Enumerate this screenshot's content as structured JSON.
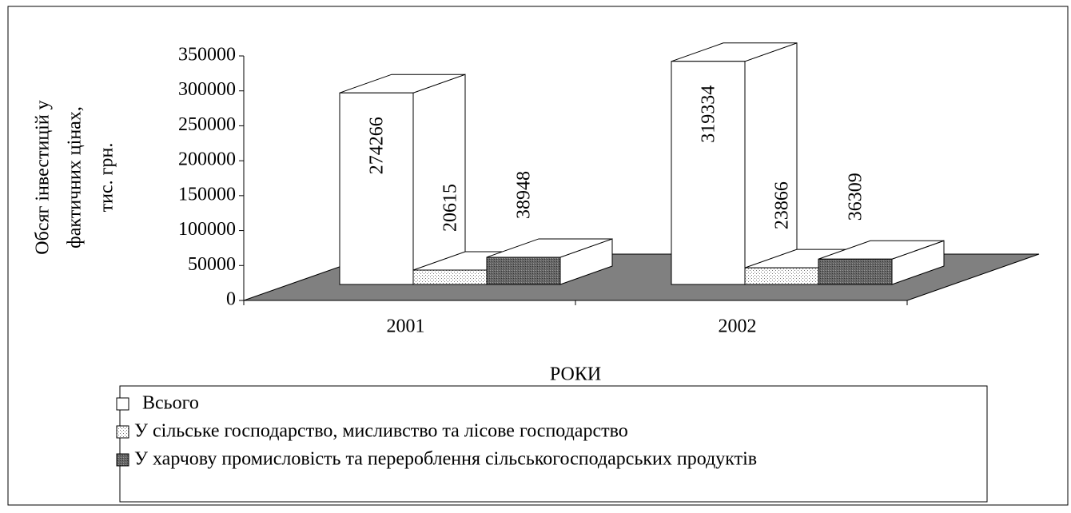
{
  "chart_data": {
    "type": "bar3d",
    "y_label": [
      "Обсяг інвестицій у",
      "фактичних цінах,",
      "тис. грн."
    ],
    "x_label": "РОКИ",
    "categories": [
      "2001",
      "2002"
    ],
    "series": [
      {
        "name": "Всього",
        "color": "#ffffff",
        "values": [
          274266,
          319334
        ]
      },
      {
        "name": "У сільське господарство, мисливство та лісове господарство",
        "color": "#e8e8e8",
        "values": [
          20615,
          23866
        ]
      },
      {
        "name": "У харчову промисловість та перероблення сільськогосподарських продуктів",
        "color": "#707070",
        "values": [
          38948,
          36309
        ]
      }
    ],
    "ylim": [
      0,
      350000
    ],
    "yticks": [
      0,
      50000,
      100000,
      150000,
      200000,
      250000,
      300000,
      350000
    ],
    "floor_color": "#808080"
  }
}
